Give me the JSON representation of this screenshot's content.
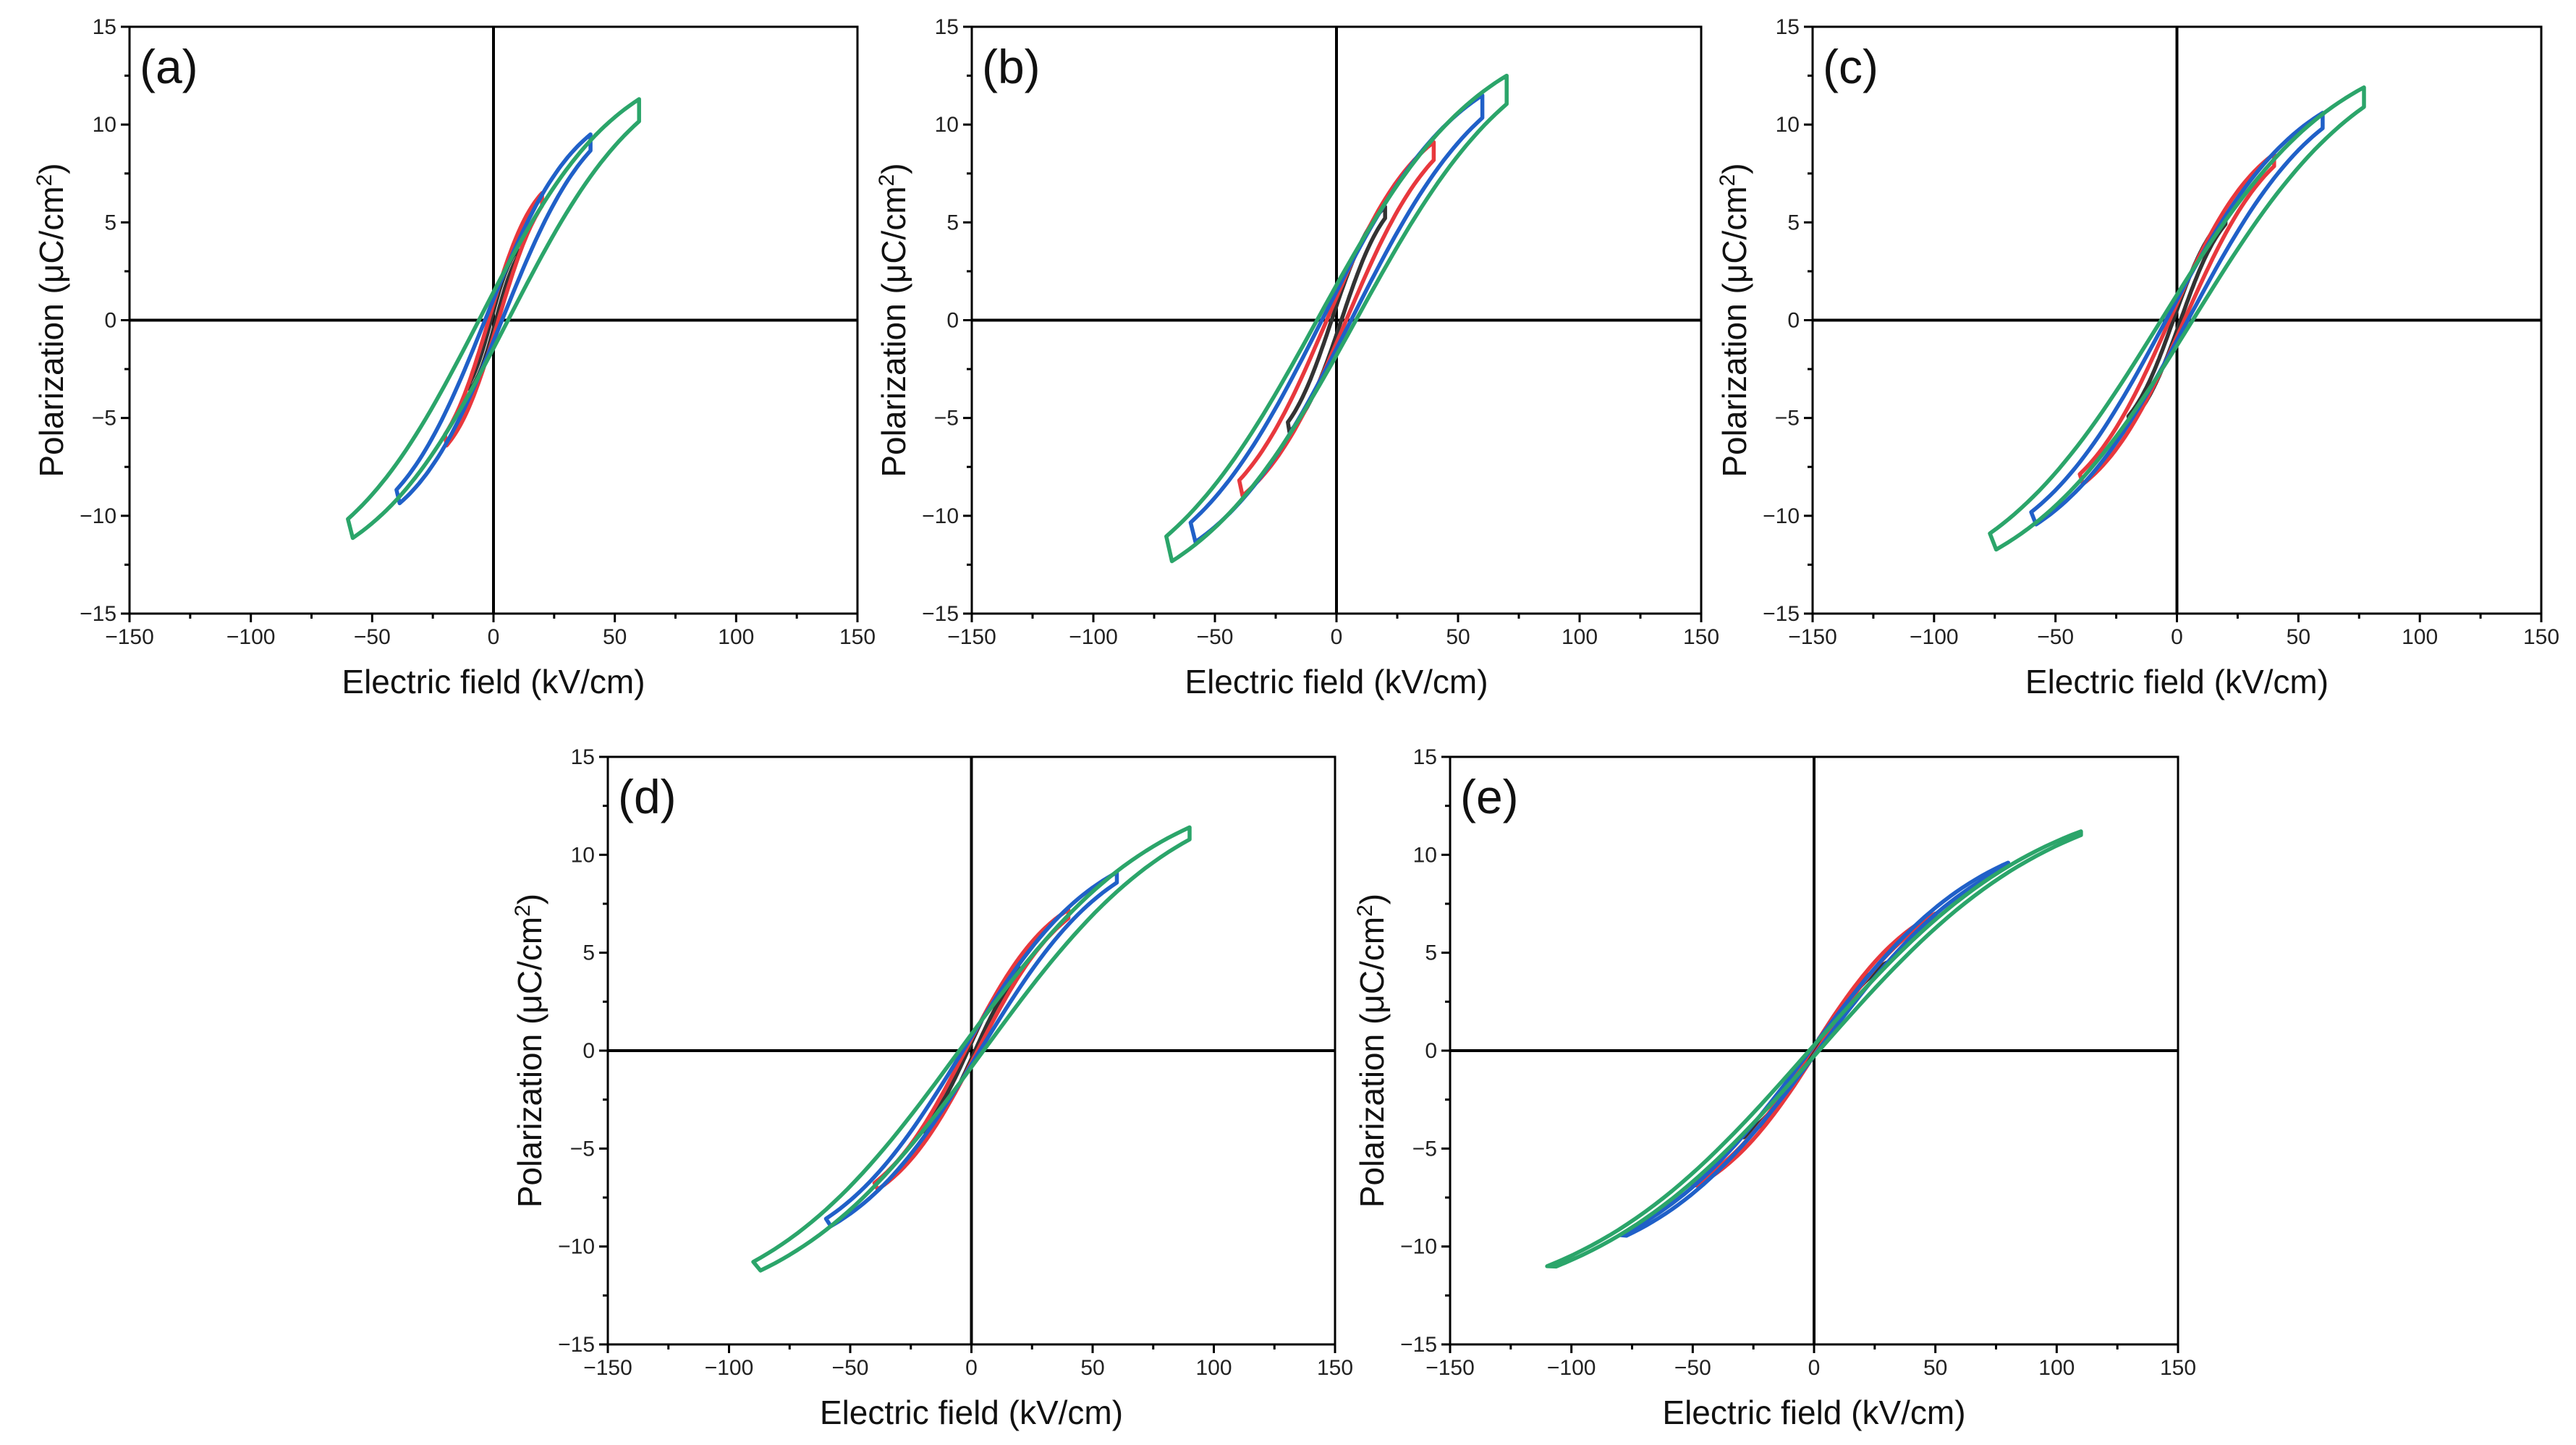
{
  "figure": {
    "colors": {
      "black_loop": "#333333",
      "red_loop": "#E8383D",
      "blue_loop": "#2060C8",
      "green_loop": "#2BA56A"
    }
  },
  "chart_data": [
    {
      "panel": "(a)",
      "type": "line",
      "xlabel": "Electric field (kV/cm)",
      "ylabel_prefix": "Polarization (μC/cm",
      "ylabel_sup": "2",
      "ylabel_suffix": ")",
      "xlim": [
        -150,
        150
      ],
      "ylim": [
        -15,
        15
      ],
      "xticks": [
        -150,
        -100,
        -50,
        0,
        50,
        100,
        150
      ],
      "yticks": [
        -15,
        -10,
        -5,
        0,
        5,
        10,
        15
      ],
      "tick_labels_x": [
        "−150",
        "−100",
        "−50",
        "0",
        "50",
        "100",
        "150"
      ],
      "tick_labels_y": [
        "−15",
        "−10",
        "−5",
        "0",
        "5",
        "10",
        "15"
      ],
      "series": [
        {
          "color": "#333333",
          "emax": 10,
          "pmax": 3.6,
          "ec": 1,
          "pr": 0.6
        },
        {
          "color": "#E8383D",
          "emax": 20,
          "pmax": 6.5,
          "ec": 2,
          "pr": 1.2
        },
        {
          "color": "#2060C8",
          "emax": 40,
          "pmax": 9.5,
          "ec": 3.5,
          "pr": 1.8
        },
        {
          "color": "#2BA56A",
          "emax": 60,
          "pmax": 11.3,
          "ec": 6,
          "pr": 2.5
        }
      ]
    },
    {
      "panel": "(b)",
      "type": "line",
      "xlabel": "Electric field (kV/cm)",
      "ylabel_prefix": "Polarization (μC/cm",
      "ylabel_sup": "2",
      "ylabel_suffix": ")",
      "xlim": [
        -150,
        150
      ],
      "ylim": [
        -15,
        15
      ],
      "xticks": [
        -150,
        -100,
        -50,
        0,
        50,
        100,
        150
      ],
      "yticks": [
        -15,
        -10,
        -5,
        0,
        5,
        10,
        15
      ],
      "tick_labels_x": [
        "−150",
        "−100",
        "−50",
        "0",
        "50",
        "100",
        "150"
      ],
      "tick_labels_y": [
        "−15",
        "−10",
        "−5",
        "0",
        "5",
        "10",
        "15"
      ],
      "series": [
        {
          "color": "#333333",
          "emax": 20,
          "pmax": 5.8,
          "ec": 2,
          "pr": 1.5
        },
        {
          "color": "#E8383D",
          "emax": 40,
          "pmax": 9.1,
          "ec": 4,
          "pr": 2.2
        },
        {
          "color": "#2060C8",
          "emax": 60,
          "pmax": 11.5,
          "ec": 6,
          "pr": 2.7
        },
        {
          "color": "#2BA56A",
          "emax": 70,
          "pmax": 12.5,
          "ec": 8,
          "pr": 3.2
        }
      ]
    },
    {
      "panel": "(c)",
      "type": "line",
      "xlabel": "Electric field (kV/cm)",
      "ylabel_prefix": "Polarization (μC/cm",
      "ylabel_sup": "2",
      "ylabel_suffix": ")",
      "xlim": [
        -150,
        150
      ],
      "ylim": [
        -15,
        15
      ],
      "xticks": [
        -150,
        -100,
        -50,
        0,
        50,
        100,
        150
      ],
      "yticks": [
        -15,
        -10,
        -5,
        0,
        5,
        10,
        15
      ],
      "tick_labels_x": [
        "−150",
        "−100",
        "−50",
        "0",
        "50",
        "100",
        "150"
      ],
      "tick_labels_y": [
        "−15",
        "−10",
        "−5",
        "0",
        "5",
        "10",
        "15"
      ],
      "series": [
        {
          "color": "#333333",
          "emax": 20,
          "pmax": 5.3,
          "ec": 1.5,
          "pr": 0.8
        },
        {
          "color": "#E8383D",
          "emax": 40,
          "pmax": 8.5,
          "ec": 3,
          "pr": 1.5
        },
        {
          "color": "#2060C8",
          "emax": 60,
          "pmax": 10.6,
          "ec": 4.5,
          "pr": 2.1
        },
        {
          "color": "#2BA56A",
          "emax": 77,
          "pmax": 11.9,
          "ec": 6.5,
          "pr": 2.8
        }
      ]
    },
    {
      "panel": "(d)",
      "type": "line",
      "xlabel": "Electric field (kV/cm)",
      "ylabel_prefix": "Polarization (μC/cm",
      "ylabel_sup": "2",
      "ylabel_suffix": ")",
      "xlim": [
        -150,
        150
      ],
      "ylim": [
        -15,
        15
      ],
      "xticks": [
        -150,
        -100,
        -50,
        0,
        50,
        100,
        150
      ],
      "yticks": [
        -15,
        -10,
        -5,
        0,
        5,
        10,
        15
      ],
      "tick_labels_x": [
        "−150",
        "−100",
        "−50",
        "0",
        "50",
        "100",
        "150"
      ],
      "tick_labels_y": [
        "−15",
        "−10",
        "−5",
        "0",
        "5",
        "10",
        "15"
      ],
      "series": [
        {
          "color": "#333333",
          "emax": 20,
          "pmax": 4.2,
          "ec": 1.5,
          "pr": 0.6
        },
        {
          "color": "#E8383D",
          "emax": 40,
          "pmax": 7.2,
          "ec": 2.5,
          "pr": 1.0
        },
        {
          "color": "#2060C8",
          "emax": 60,
          "pmax": 9.1,
          "ec": 3.5,
          "pr": 1.2
        },
        {
          "color": "#2BA56A",
          "emax": 90,
          "pmax": 11.4,
          "ec": 5,
          "pr": 1.4
        }
      ]
    },
    {
      "panel": "(e)",
      "type": "line",
      "xlabel": "Electric field (kV/cm)",
      "ylabel_prefix": "Polarization (μC/cm",
      "ylabel_sup": "2",
      "ylabel_suffix": ")",
      "xlim": [
        -150,
        150
      ],
      "ylim": [
        -15,
        15
      ],
      "xticks": [
        -150,
        -100,
        -50,
        0,
        50,
        100,
        150
      ],
      "yticks": [
        -15,
        -10,
        -5,
        0,
        5,
        10,
        15
      ],
      "tick_labels_x": [
        "−150",
        "−100",
        "−50",
        "0",
        "50",
        "100",
        "150"
      ],
      "tick_labels_y": [
        "−15",
        "−10",
        "−5",
        "0",
        "5",
        "10",
        "15"
      ],
      "series": [
        {
          "color": "#333333",
          "emax": 30,
          "pmax": 4.5,
          "ec": 0.8,
          "pr": 0.2
        },
        {
          "color": "#E8383D",
          "emax": 50,
          "pmax": 7.0,
          "ec": 1.2,
          "pr": 0.3
        },
        {
          "color": "#2060C8",
          "emax": 80,
          "pmax": 9.6,
          "ec": 1.6,
          "pr": 0.4
        },
        {
          "color": "#2BA56A",
          "emax": 110,
          "pmax": 11.2,
          "ec": 2,
          "pr": 0.5
        }
      ]
    }
  ]
}
